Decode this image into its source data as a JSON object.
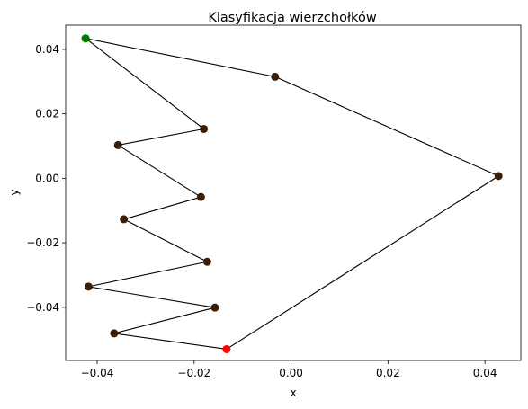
{
  "chart_data": {
    "type": "line",
    "title": "Klasyfikacja wierzchołków",
    "xlabel": "x",
    "ylabel": "y",
    "xlim": [
      -0.0465,
      0.0474
    ],
    "ylim": [
      -0.0565,
      0.0475
    ],
    "x_ticks": [
      -0.04,
      -0.02,
      0.0,
      0.02,
      0.04
    ],
    "x_tick_labels": [
      "−0.04",
      "−0.02",
      "0.00",
      "0.02",
      "0.04"
    ],
    "y_ticks": [
      -0.04,
      -0.02,
      0.0,
      0.02,
      0.04
    ],
    "y_tick_labels": [
      "−0.04",
      "−0.02",
      "0.00",
      "0.02",
      "0.04"
    ],
    "grid": false,
    "line_color": "#000000",
    "default_marker_color": "#3b1e08",
    "series": [
      {
        "x": [
          -0.0424,
          -0.018,
          -0.0357,
          -0.0186,
          -0.0345,
          -0.0173,
          -0.0418,
          -0.0157,
          -0.0365,
          -0.0133,
          0.0428,
          -0.0033,
          -0.0424
        ],
        "y": [
          0.0434,
          0.0153,
          0.0103,
          -0.0058,
          -0.0127,
          -0.0259,
          -0.0336,
          -0.0401,
          -0.0481,
          -0.053,
          0.0007,
          0.0315,
          0.0434
        ],
        "marker_colors": [
          "#008000",
          "#3b1e08",
          "#3b1e08",
          "#3b1e08",
          "#3b1e08",
          "#3b1e08",
          "#3b1e08",
          "#3b1e08",
          "#3b1e08",
          "#ff0000",
          "#3b1e08",
          "#3b1e08",
          "#008000"
        ]
      }
    ]
  }
}
